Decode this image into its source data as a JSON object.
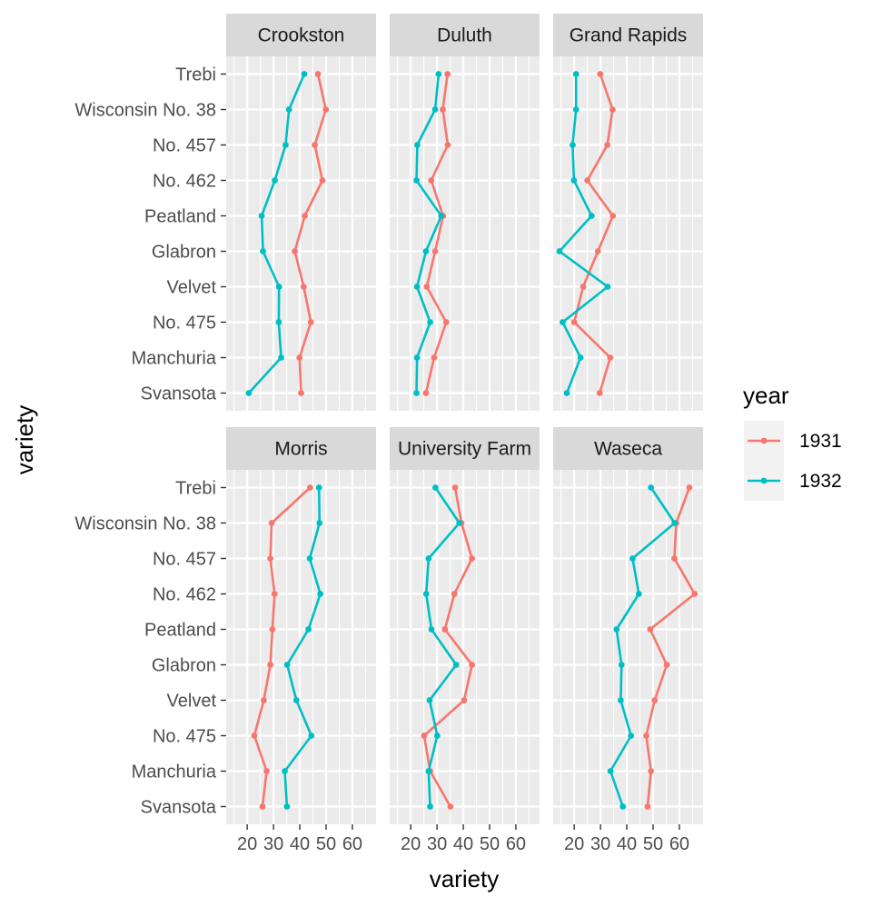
{
  "chart_data": {
    "type": "line",
    "title": "",
    "xlabel": "variety",
    "ylabel": "variety",
    "xlim": [
      12,
      69
    ],
    "x_ticks": [
      20,
      30,
      40,
      50,
      60
    ],
    "x_tick_labels": [
      "20",
      "30",
      "40",
      "50",
      "60"
    ],
    "categories": [
      "Svansota",
      "Manchuria",
      "No. 475",
      "Velvet",
      "Glabron",
      "Peatland",
      "No. 462",
      "No. 457",
      "Wisconsin No. 38",
      "Trebi"
    ],
    "facet_layout": {
      "rows": 2,
      "cols": 3
    },
    "grid": true,
    "legend": {
      "title": "year",
      "position": "right",
      "entries": [
        {
          "label": "1931",
          "color": "#F8766D"
        },
        {
          "label": "1932",
          "color": "#00BFC4"
        }
      ]
    },
    "panels": [
      {
        "name": "Crookston",
        "series": [
          {
            "name": "1931",
            "color": "#F8766D",
            "values": [
              40.5,
              39.9,
              44.2,
              41.5,
              38.1,
              41.9,
              48.6,
              45.7,
              49.9,
              46.9
            ]
          },
          {
            "name": "1932",
            "color": "#00BFC4",
            "values": [
              20.6,
              32.9,
              32.0,
              32.1,
              26.0,
              25.5,
              30.5,
              34.6,
              35.9,
              41.7
            ]
          }
        ]
      },
      {
        "name": "Duluth",
        "series": [
          {
            "name": "1931",
            "color": "#F8766D",
            "values": [
              25.8,
              28.9,
              33.5,
              26.1,
              29.3,
              32.3,
              27.8,
              34.1,
              32.2,
              34.0
            ]
          },
          {
            "name": "1932",
            "color": "#00BFC4",
            "values": [
              22.2,
              22.4,
              27.4,
              22.4,
              25.8,
              31.6,
              22.2,
              22.5,
              29.3,
              30.6
            ]
          }
        ]
      },
      {
        "name": "Grand Rapids",
        "series": [
          {
            "name": "1931",
            "color": "#F8766D",
            "values": [
              29.7,
              33.7,
              20.0,
              23.4,
              29.0,
              34.7,
              25.0,
              32.6,
              34.6,
              29.9
            ]
          },
          {
            "name": "1932",
            "color": "#00BFC4",
            "values": [
              17.2,
              22.4,
              15.6,
              32.7,
              14.4,
              26.6,
              19.9,
              19.4,
              20.7,
              20.7
            ]
          }
        ]
      },
      {
        "name": "Morris",
        "series": [
          {
            "name": "1931",
            "color": "#F8766D",
            "values": [
              25.8,
              27.4,
              22.7,
              26.3,
              28.8,
              29.6,
              30.4,
              28.8,
              29.3,
              43.9
            ]
          },
          {
            "name": "1932",
            "color": "#00BFC4",
            "values": [
              35.1,
              34.3,
              44.4,
              38.7,
              35.2,
              43.3,
              47.8,
              43.8,
              47.5,
              47.3
            ]
          }
        ]
      },
      {
        "name": "University Farm",
        "series": [
          {
            "name": "1931",
            "color": "#F8766D",
            "values": [
              35.1,
              27.4,
              25.1,
              40.3,
              43.3,
              33.0,
              36.6,
              43.3,
              39.3,
              36.9
            ]
          },
          {
            "name": "1932",
            "color": "#00BFC4",
            "values": [
              27.4,
              26.8,
              30.1,
              27.2,
              37.3,
              27.9,
              25.9,
              26.8,
              38.5,
              29.4
            ]
          }
        ]
      },
      {
        "name": "Waseca",
        "series": [
          {
            "name": "1931",
            "color": "#F8766D",
            "values": [
              47.9,
              49.2,
              47.4,
              50.6,
              55.2,
              48.9,
              65.8,
              58.1,
              58.8,
              63.8
            ]
          },
          {
            "name": "1932",
            "color": "#00BFC4",
            "values": [
              38.5,
              33.8,
              41.6,
              37.7,
              38.0,
              36.1,
              44.6,
              42.2,
              58.2,
              49.2
            ]
          }
        ]
      }
    ]
  }
}
